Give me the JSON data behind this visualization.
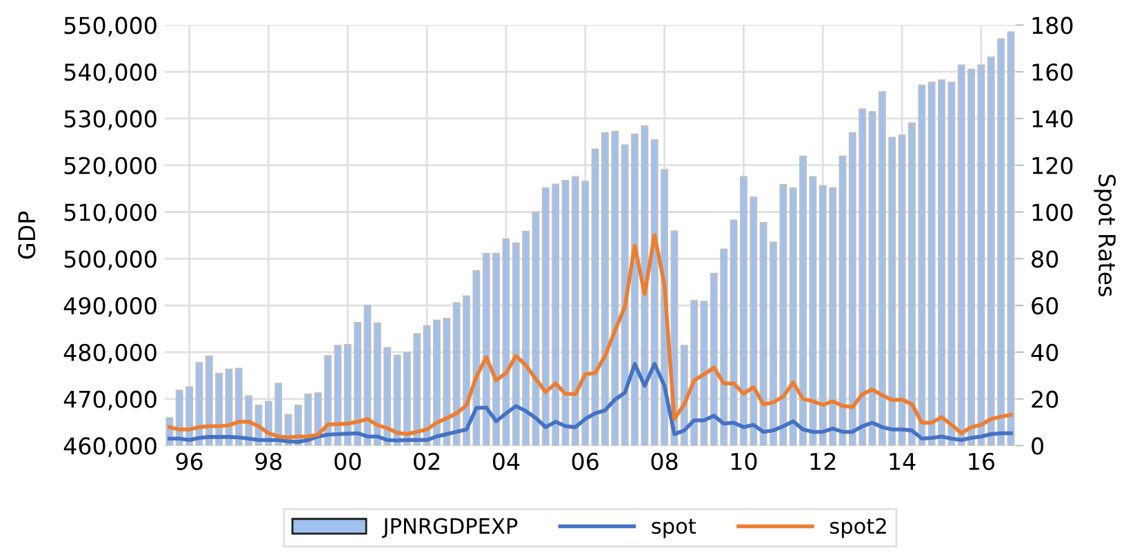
{
  "chart_data": {
    "type": "bar",
    "ylabel": "GDP",
    "y2label": "Spot Rates",
    "categories": [
      null,
      null,
      "96",
      null,
      null,
      null,
      null,
      null,
      null,
      null,
      "98",
      null,
      null,
      null,
      null,
      null,
      null,
      null,
      "00",
      null,
      null,
      null,
      null,
      null,
      null,
      null,
      "02",
      null,
      null,
      null,
      null,
      null,
      null,
      null,
      "04",
      null,
      null,
      null,
      null,
      null,
      null,
      null,
      "06",
      null,
      null,
      null,
      null,
      null,
      null,
      null,
      "08",
      null,
      null,
      null,
      null,
      null,
      null,
      null,
      "10",
      null,
      null,
      null,
      null,
      null,
      null,
      null,
      "12",
      null,
      null,
      null,
      null,
      null,
      null,
      null,
      "14",
      null,
      null,
      null,
      null,
      null,
      null,
      null,
      "16",
      null,
      null,
      null
    ],
    "series": [
      {
        "name": "JPNRGDPEXP",
        "color": "#9fc1f0",
        "values": [
          465900,
          471800,
          472500,
          477700,
          479100,
          475400,
          476300,
          476500,
          470600,
          468600,
          469400,
          473300,
          466600,
          468600,
          471000,
          471200,
          479200,
          481400,
          481600,
          486300,
          490000,
          486200,
          480900,
          479300,
          479900,
          483900,
          485600,
          486800,
          487200,
          490500,
          492000,
          497400,
          501100,
          501100,
          504200,
          503300,
          505800,
          509900,
          515100,
          515900,
          516700,
          517500,
          516500,
          523400,
          526900,
          527200,
          524300,
          526600,
          528400,
          525400,
          519000,
          505900,
          481400,
          491000,
          490800,
          496800,
          502000,
          508200,
          517500,
          513100,
          507700,
          503500,
          515800,
          515100,
          521900,
          517500,
          515600,
          515100,
          521900,
          526900,
          532000,
          531400,
          535700,
          525900,
          526400,
          529000,
          537100,
          537700,
          538200,
          537700,
          541400,
          540500,
          541400,
          543100,
          547000,
          548500
        ]
      },
      {
        "name": "spot",
        "type": "line",
        "axis": "y2",
        "color": "#4472c4",
        "values": [
          3.0,
          3.0,
          2.4,
          3.3,
          3.7,
          3.7,
          3.7,
          3.5,
          3.0,
          2.4,
          2.4,
          2.4,
          1.8,
          1.6,
          2.4,
          3.9,
          4.7,
          4.9,
          5.1,
          5.3,
          3.9,
          3.9,
          2.4,
          2.2,
          2.4,
          2.4,
          2.4,
          3.9,
          4.9,
          5.9,
          6.9,
          16.1,
          16.3,
          10.4,
          13.8,
          16.9,
          14.8,
          11.8,
          7.9,
          10.2,
          8.3,
          7.9,
          11.4,
          13.8,
          15.1,
          19.7,
          22.6,
          35.0,
          25.6,
          35.0,
          25.6,
          4.9,
          6.5,
          10.8,
          10.8,
          12.8,
          9.4,
          9.8,
          7.9,
          8.9,
          5.9,
          6.5,
          8.3,
          10.4,
          6.9,
          5.9,
          5.9,
          7.3,
          5.9,
          5.9,
          8.3,
          9.8,
          7.9,
          6.9,
          6.9,
          6.5,
          3.0,
          3.3,
          3.9,
          3.0,
          2.4,
          3.3,
          3.9,
          4.9,
          5.3,
          5.3
        ]
      },
      {
        "name": "spot2",
        "type": "line",
        "axis": "y2",
        "color": "#ed7d31",
        "values": [
          7.9,
          6.9,
          6.9,
          7.9,
          8.3,
          8.3,
          8.7,
          10.2,
          10.2,
          8.3,
          5.3,
          3.9,
          3.5,
          3.9,
          3.9,
          4.7,
          9.0,
          9.2,
          9.4,
          10.2,
          11.4,
          8.7,
          7.5,
          5.5,
          4.9,
          5.9,
          6.9,
          9.8,
          11.8,
          13.8,
          17.3,
          29.5,
          37.8,
          27.9,
          31.1,
          38.4,
          34.4,
          28.5,
          23.0,
          26.6,
          22.2,
          22.0,
          30.5,
          31.1,
          38.4,
          49.2,
          59.4,
          85.6,
          64.9,
          90.1,
          68.9,
          11.4,
          17.7,
          27.9,
          30.5,
          33.4,
          26.6,
          26.6,
          22.2,
          25.0,
          17.7,
          18.5,
          21.0,
          27.0,
          20.0,
          19.0,
          17.5,
          19.0,
          17.0,
          16.5,
          22.0,
          24.0,
          21.5,
          19.5,
          19.7,
          17.7,
          9.8,
          9.8,
          12.2,
          8.9,
          5.3,
          7.9,
          8.9,
          11.4,
          12.4,
          13.2
        ]
      }
    ],
    "ylim": [
      460000,
      550000
    ],
    "yticks": [
      {
        "value": 460000,
        "label": "460,000"
      },
      {
        "value": 470000,
        "label": "470,000"
      },
      {
        "value": 480000,
        "label": "480,000"
      },
      {
        "value": 490000,
        "label": "490,000"
      },
      {
        "value": 500000,
        "label": "500,000"
      },
      {
        "value": 510000,
        "label": "510,000"
      },
      {
        "value": 520000,
        "label": "520,000"
      },
      {
        "value": 530000,
        "label": "530,000"
      },
      {
        "value": 540000,
        "label": "540,000"
      },
      {
        "value": 550000,
        "label": "550,000"
      }
    ],
    "y2lim": [
      0,
      180
    ],
    "y2ticks": [
      0,
      20,
      40,
      60,
      80,
      100,
      120,
      140,
      160,
      180
    ],
    "grid": true,
    "legend": "bottom",
    "line_style": "solid",
    "marker": "none"
  }
}
